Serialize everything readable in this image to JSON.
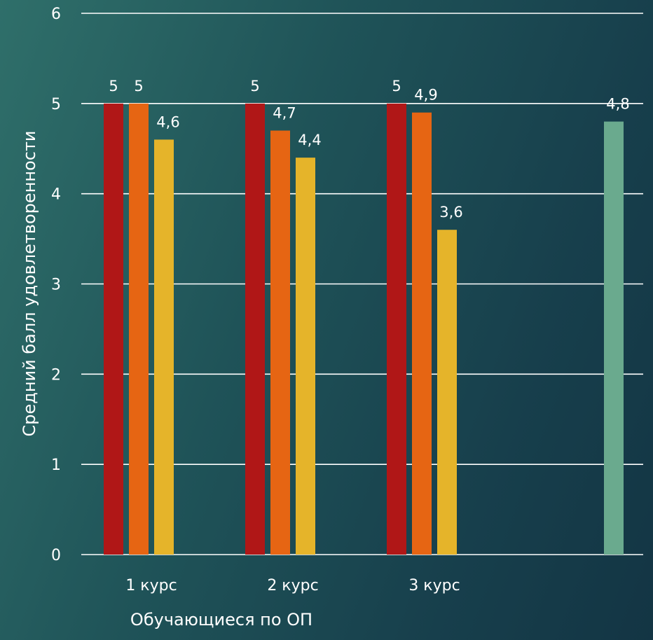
{
  "chart_data": {
    "type": "bar",
    "title": "",
    "xlabel": "Обучающиеся по ОП",
    "ylabel": "Средний балл  удовлетворенности",
    "ylim": [
      0,
      6
    ],
    "yticks": [
      "0",
      "1",
      "2",
      "3",
      "4",
      "5",
      "6"
    ],
    "grid": true,
    "legend": "none",
    "categories": [
      "1 курс",
      "2 курс",
      "3 курс",
      ""
    ],
    "series": [
      {
        "color": "#b01717",
        "values": [
          5,
          5,
          5,
          null
        ],
        "labels": [
          "5",
          "5",
          "5",
          ""
        ]
      },
      {
        "color": "#e66513",
        "values": [
          5,
          4.7,
          4.9,
          null
        ],
        "labels": [
          "5",
          "4,7",
          "4,9",
          ""
        ]
      },
      {
        "color": "#e5b42a",
        "values": [
          4.6,
          4.4,
          3.6,
          null
        ],
        "labels": [
          "4,6",
          "4,4",
          "3,6",
          ""
        ]
      },
      {
        "color": "#6aaa8e",
        "values": [
          null,
          null,
          null,
          4.8
        ],
        "labels": [
          "",
          "",
          "",
          "4,8"
        ]
      }
    ]
  }
}
